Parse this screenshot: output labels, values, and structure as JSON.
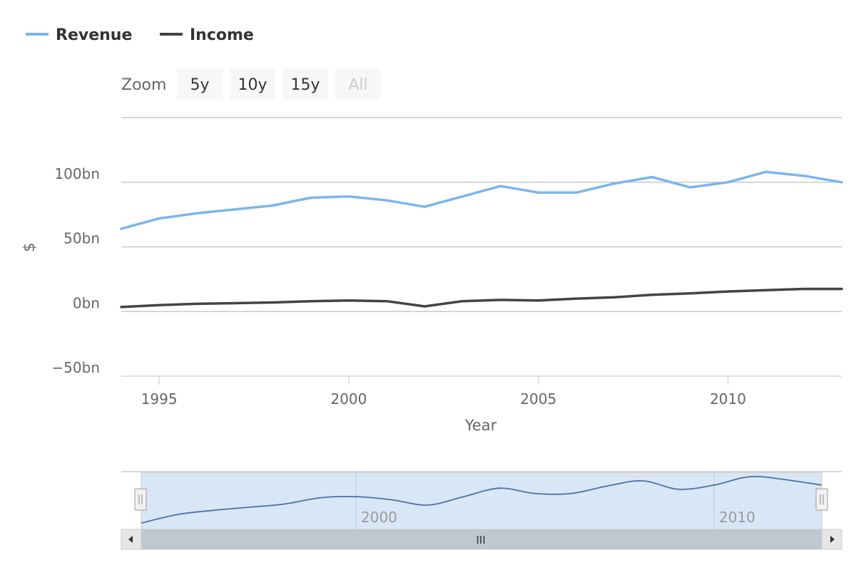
{
  "legend": [
    {
      "label": "Revenue",
      "color": "#7cb5ec"
    },
    {
      "label": "Income",
      "color": "#434348"
    }
  ],
  "range_selector": {
    "zoom_label": "Zoom",
    "buttons": [
      {
        "label": "5y",
        "enabled": true
      },
      {
        "label": "10y",
        "enabled": true
      },
      {
        "label": "15y",
        "enabled": true
      },
      {
        "label": "All",
        "enabled": false
      }
    ]
  },
  "navigator": {
    "labels": [
      "2000",
      "2010"
    ],
    "grip_symbol": "III",
    "left_arrow": "left-arrow-icon",
    "right_arrow": "right-arrow-icon"
  },
  "chart_data": {
    "type": "line",
    "title": "",
    "xlabel": "Year",
    "ylabel": "$",
    "xlim": [
      1994,
      2013
    ],
    "ylim": [
      -50,
      150
    ],
    "xticks": [
      1995,
      2000,
      2005,
      2010
    ],
    "yticks": [
      {
        "value": -50,
        "label": "−50bn"
      },
      {
        "value": 0,
        "label": "0bn"
      },
      {
        "value": 50,
        "label": "50bn"
      },
      {
        "value": 100,
        "label": "100bn"
      }
    ],
    "x": [
      1994,
      1995,
      1996,
      1997,
      1998,
      1999,
      2000,
      2001,
      2002,
      2003,
      2004,
      2005,
      2006,
      2007,
      2008,
      2009,
      2010,
      2011,
      2012,
      2013
    ],
    "series": [
      {
        "name": "Revenue",
        "color": "#7cb5ec",
        "values": [
          64,
          72,
          76,
          79,
          82,
          88,
          89,
          86,
          81,
          89,
          97,
          92,
          92,
          99,
          104,
          96,
          100,
          108,
          105,
          100
        ]
      },
      {
        "name": "Income",
        "color": "#434348",
        "values": [
          3.5,
          5,
          6,
          6.5,
          7,
          8,
          8.5,
          8,
          4,
          8,
          9,
          8.5,
          10,
          11,
          13,
          14,
          15.5,
          16.5,
          17.5,
          17.5
        ]
      }
    ],
    "grid": true,
    "legend_position": "top-left"
  }
}
